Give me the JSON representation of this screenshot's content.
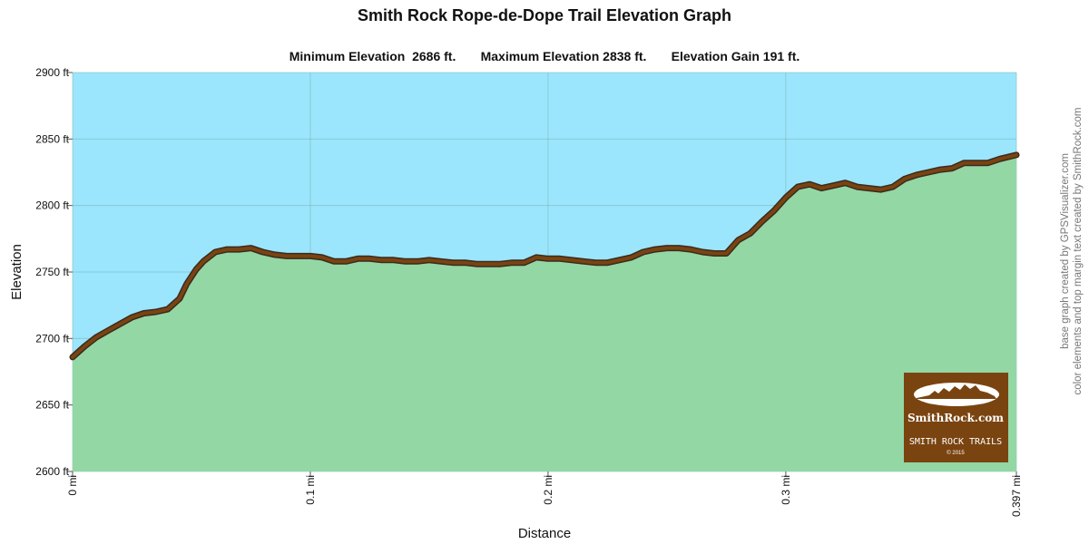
{
  "title": "Smith Rock Rope-de-Dope Trail Elevation Graph",
  "subtitle": {
    "min": "Minimum Elevation  2686 ft.",
    "max": "Maximum Elevation 2838 ft.",
    "gain": "Elevation Gain 191 ft."
  },
  "credits": {
    "line1": "base graph created by GPSVisualizer.com",
    "line2": "color elements and top margin text created by SmithRock.com"
  },
  "logo": {
    "brand": "SmithRock.com",
    "tagline": "SMITH ROCK TRAILS",
    "year": "© 2015"
  },
  "colors": {
    "sky": "#9be6fd",
    "ground": "#93d7a4",
    "trail": "#7a4410",
    "trail_shadow": "#3a2a20",
    "logo_bg": "#7a4410",
    "grid": "#7fb3b3"
  },
  "chart_data": {
    "type": "area",
    "xlabel": "Distance",
    "ylabel": "Elevation",
    "xlim": [
      0,
      0.397
    ],
    "ylim": [
      2600,
      2900
    ],
    "x_unit": "mi",
    "y_unit": "ft",
    "x_ticks": [
      "0 mi",
      "0.1 mi",
      "0.2 mi",
      "0.3 mi",
      "0.397 mi"
    ],
    "x_tick_values": [
      0,
      0.1,
      0.2,
      0.3,
      0.397
    ],
    "y_ticks": [
      "2600 ft",
      "2650 ft",
      "2700 ft",
      "2750 ft",
      "2800 ft",
      "2850 ft",
      "2900 ft"
    ],
    "y_tick_values": [
      2600,
      2650,
      2700,
      2750,
      2800,
      2850,
      2900
    ],
    "grid": true,
    "series": [
      {
        "x": [
          0,
          0.005,
          0.01,
          0.015,
          0.02,
          0.025,
          0.03,
          0.035,
          0.04,
          0.045,
          0.048,
          0.052,
          0.055,
          0.06,
          0.065,
          0.07,
          0.075,
          0.08,
          0.085,
          0.09,
          0.095,
          0.1,
          0.105,
          0.11,
          0.115,
          0.12,
          0.125,
          0.13,
          0.135,
          0.14,
          0.145,
          0.15,
          0.155,
          0.16,
          0.165,
          0.17,
          0.175,
          0.18,
          0.185,
          0.19,
          0.195,
          0.2,
          0.205,
          0.21,
          0.215,
          0.22,
          0.225,
          0.23,
          0.235,
          0.24,
          0.245,
          0.25,
          0.255,
          0.26,
          0.265,
          0.27,
          0.275,
          0.28,
          0.285,
          0.29,
          0.295,
          0.3,
          0.305,
          0.31,
          0.315,
          0.32,
          0.325,
          0.33,
          0.335,
          0.34,
          0.345,
          0.35,
          0.355,
          0.36,
          0.365,
          0.37,
          0.375,
          0.38,
          0.385,
          0.39,
          0.397
        ],
        "y": [
          2686,
          2694,
          2701,
          2706,
          2711,
          2716,
          2719,
          2720,
          2722,
          2730,
          2741,
          2752,
          2758,
          2765,
          2767,
          2767,
          2768,
          2765,
          2763,
          2762,
          2762,
          2762,
          2761,
          2758,
          2758,
          2760,
          2760,
          2759,
          2759,
          2758,
          2758,
          2759,
          2758,
          2757,
          2757,
          2756,
          2756,
          2756,
          2757,
          2757,
          2761,
          2760,
          2760,
          2759,
          2758,
          2757,
          2757,
          2759,
          2761,
          2765,
          2767,
          2768,
          2768,
          2767,
          2765,
          2764,
          2764,
          2774,
          2779,
          2788,
          2796,
          2806,
          2814,
          2816,
          2813,
          2815,
          2817,
          2814,
          2813,
          2812,
          2814,
          2820,
          2823,
          2825,
          2827,
          2828,
          2832,
          2832,
          2832,
          2835,
          2838
        ]
      }
    ]
  }
}
